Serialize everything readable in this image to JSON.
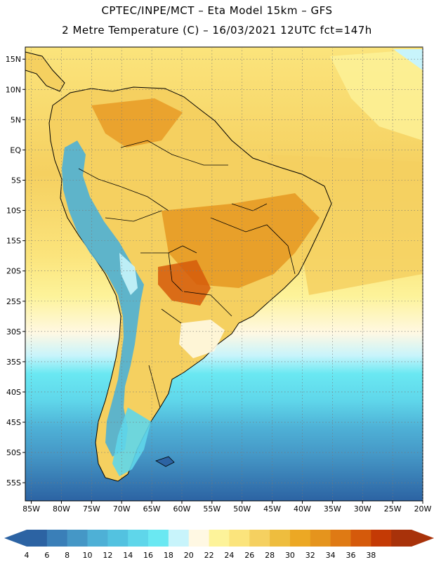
{
  "header": {
    "title_line1": "CPTEC/INPE/MCT –  Eta Model 15km – GFS",
    "title_line2": "2 Metre Temperature (C) – 16/03/2021 12UTC fct=147h"
  },
  "map": {
    "lat_labels": [
      "15N",
      "10N",
      "5N",
      "EQ",
      "5S",
      "10S",
      "15S",
      "20S",
      "25S",
      "30S",
      "35S",
      "40S",
      "45S",
      "50S",
      "55S"
    ],
    "lon_labels": [
      "85W",
      "80W",
      "75W",
      "70W",
      "65W",
      "60W",
      "55W",
      "50W",
      "45W",
      "40W",
      "35W",
      "30W",
      "25W",
      "20W"
    ],
    "extent": {
      "lon": [
        -86,
        -20
      ],
      "lat": [
        -58,
        17
      ]
    }
  },
  "legend": {
    "values": [
      "4",
      "6",
      "8",
      "10",
      "12",
      "14",
      "16",
      "18",
      "20",
      "22",
      "24",
      "26",
      "28",
      "30",
      "32",
      "34",
      "36",
      "38"
    ],
    "colors": [
      "#2c63a3",
      "#3a7fb8",
      "#4597c6",
      "#4eb0d6",
      "#53c2e0",
      "#5fd6ea",
      "#6ae8f2",
      "#c8f4fb",
      "#fff8e3",
      "#fdf39a",
      "#fbe47c",
      "#f5d060",
      "#eebd3e",
      "#eca824",
      "#e5941d",
      "#df7a14",
      "#d55a0b",
      "#c43a05",
      "#a8320a"
    ]
  }
}
